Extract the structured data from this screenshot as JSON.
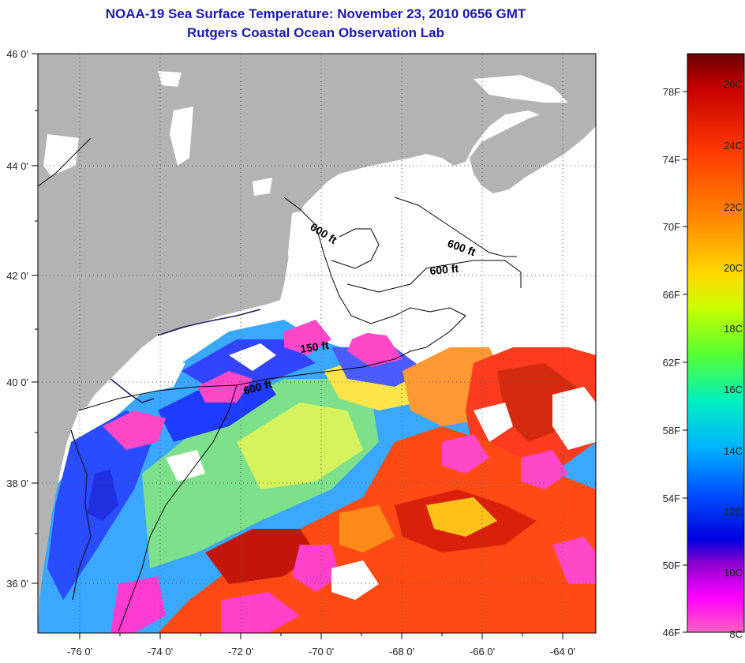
{
  "header": {
    "title": "NOAA-19 Sea Surface Temperature:  November 23, 2010 0656 GMT",
    "subtitle": "Rutgers Coastal Ocean Observation Lab"
  },
  "map": {
    "x_ticks": [
      "-76 0'",
      "-74 0'",
      "-72 0'",
      "-70 0'",
      "-68 0'",
      "-66 0'",
      "-64 0'"
    ],
    "y_ticks": [
      "46 0'",
      "44 0'",
      "42 0'",
      "40 0'",
      "38 0'",
      "36 0'"
    ],
    "x_range_deg": [
      -77.3,
      -63.0
    ],
    "y_range_deg": [
      35.0,
      46.0
    ],
    "contour_labels": [
      "600 ft",
      "600 ft",
      "600 ft",
      "150 ft",
      "600 ft"
    ],
    "land_color": "#b3b3b3",
    "cloud_color": "#ffffff"
  },
  "colorbar": {
    "f_labels": [
      "78F",
      "74F",
      "70F",
      "66F",
      "62F",
      "58F",
      "54F",
      "50F",
      "46F"
    ],
    "c_labels": [
      "26C",
      "24C",
      "22C",
      "20C",
      "18C",
      "16C",
      "14C",
      "12C",
      "10C",
      "8C"
    ],
    "colors": [
      "#6b0000",
      "#c80000",
      "#ff3a00",
      "#ff8c00",
      "#ffd800",
      "#c8ff00",
      "#55ff33",
      "#00f0c0",
      "#00b4ff",
      "#0050ff",
      "#0000e0",
      "#8a00d0",
      "#ff00ff",
      "#ff60c0"
    ]
  }
}
